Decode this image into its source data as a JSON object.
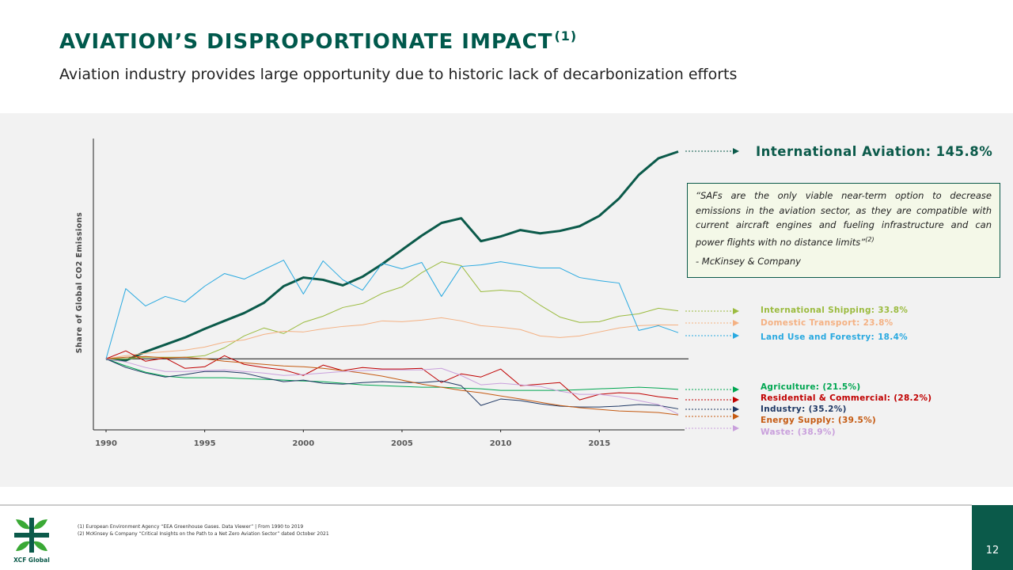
{
  "header": {
    "title": "AVIATION’S DISPROPORTIONATE IMPACT",
    "title_note": "(1)",
    "subtitle": "Aviation industry provides large opportunity due to historic lack of decarbonization efforts"
  },
  "chart_data": {
    "type": "line",
    "ylabel": "Share of Global CO2 Emissions",
    "x": [
      1990,
      1991,
      1992,
      1993,
      1994,
      1995,
      1996,
      1997,
      1998,
      1999,
      2000,
      2001,
      2002,
      2003,
      2004,
      2005,
      2006,
      2007,
      2008,
      2009,
      2010,
      2011,
      2012,
      2013,
      2014,
      2015,
      2016,
      2017,
      2018,
      2019
    ],
    "xlim": [
      1990,
      2019
    ],
    "xticks": [
      1990,
      1995,
      2000,
      2005,
      2010,
      2015
    ],
    "ylim": [
      -50,
      155
    ],
    "series": [
      {
        "name": "International Aviation:",
        "end_label": "145.8%",
        "color": "#0b5a4a",
        "line_width": 3,
        "values": [
          0,
          -1.1,
          5.0,
          10.0,
          15.0,
          21.1,
          26.7,
          32.2,
          39.4,
          51.1,
          57.2,
          55.6,
          51.7,
          57.8,
          66.7,
          76.7,
          86.7,
          95.6,
          98.9,
          82.8,
          86.1,
          90.6,
          88.3,
          90.0,
          93.3,
          100.6,
          112.8,
          129.4,
          141.1,
          145.8
        ]
      },
      {
        "name": "International Shipping:",
        "end_label": "33.8%",
        "color": "#9bbb3f",
        "line_width": 1,
        "values": [
          0,
          0,
          1.1,
          1.1,
          1.1,
          2.2,
          7.8,
          16.1,
          21.7,
          17.8,
          25.6,
          30.0,
          36.1,
          38.9,
          46.1,
          50.6,
          60.6,
          68.3,
          65.6,
          47.2,
          48.3,
          47.2,
          37.8,
          29.4,
          25.6,
          26.1,
          30.0,
          31.7,
          35.6,
          33.8
        ]
      },
      {
        "name": "Domestic Transport:",
        "end_label": "23.8%",
        "color": "#f4b183",
        "line_width": 1,
        "values": [
          0,
          2.2,
          3.9,
          5.0,
          6.1,
          8.3,
          11.7,
          13.3,
          17.2,
          19.4,
          18.9,
          21.1,
          22.8,
          23.9,
          26.7,
          26.1,
          27.2,
          28.9,
          26.7,
          23.3,
          22.2,
          20.6,
          16.1,
          15.0,
          16.1,
          18.9,
          21.7,
          23.3,
          23.9,
          23.8
        ]
      },
      {
        "name": "Land Use and Forestry:",
        "end_label": "18.4%",
        "color": "#29a9e0",
        "line_width": 1,
        "values": [
          0,
          49.4,
          37.2,
          43.9,
          40.0,
          51.1,
          60.0,
          56.1,
          62.8,
          69.4,
          45.6,
          68.9,
          55.6,
          48.3,
          67.2,
          63.3,
          67.8,
          43.9,
          65.0,
          66.1,
          68.3,
          66.1,
          63.9,
          63.9,
          57.2,
          55.0,
          53.3,
          20.0,
          23.3,
          18.4
        ]
      },
      {
        "name": "Agriculture:",
        "end_label": "(21.5%)",
        "color": "#00a651",
        "line_width": 1,
        "values": [
          0,
          -5.0,
          -9.4,
          -12.2,
          -13.3,
          -13.3,
          -13.3,
          -13.9,
          -14.4,
          -15.0,
          -15.6,
          -16.1,
          -17.2,
          -18.3,
          -18.9,
          -19.4,
          -20.0,
          -20.0,
          -20.6,
          -21.1,
          -22.2,
          -22.2,
          -22.2,
          -22.2,
          -21.7,
          -21.1,
          -20.6,
          -20.0,
          -20.6,
          -21.5
        ]
      },
      {
        "name": "Residential & Commercial:",
        "end_label": "(28.2%)",
        "color": "#c00000",
        "line_width": 1,
        "values": [
          0,
          5.6,
          -1.7,
          0.6,
          -6.7,
          -5.6,
          2.2,
          -3.9,
          -6.1,
          -7.8,
          -11.7,
          -4.4,
          -8.3,
          -6.1,
          -7.2,
          -7.2,
          -6.7,
          -16.7,
          -10.6,
          -12.8,
          -7.2,
          -18.9,
          -17.8,
          -16.7,
          -28.9,
          -25.0,
          -23.9,
          -24.4,
          -26.7,
          -28.2
        ]
      },
      {
        "name": "Industry:",
        "end_label": "(35.2%)",
        "color": "#1f3864",
        "line_width": 1,
        "values": [
          0,
          -6.1,
          -10.0,
          -12.8,
          -11.1,
          -8.9,
          -8.9,
          -10.0,
          -13.3,
          -16.1,
          -15.0,
          -17.2,
          -17.8,
          -16.7,
          -16.1,
          -16.7,
          -16.7,
          -15.6,
          -18.9,
          -32.8,
          -28.3,
          -29.4,
          -31.7,
          -33.3,
          -33.9,
          -33.9,
          -33.3,
          -32.2,
          -32.8,
          -35.2
        ]
      },
      {
        "name": "Energy Supply:",
        "end_label": "(39.5%)",
        "color": "#c55a11",
        "line_width": 1,
        "values": [
          0,
          1.1,
          1.7,
          0.6,
          1.1,
          0,
          -1.7,
          -2.8,
          -3.9,
          -5.0,
          -5.6,
          -6.7,
          -8.3,
          -10.0,
          -12.2,
          -15.0,
          -17.8,
          -20.0,
          -22.2,
          -23.9,
          -26.1,
          -28.3,
          -30.6,
          -32.8,
          -34.4,
          -35.6,
          -36.7,
          -37.2,
          -37.8,
          -39.5
        ]
      },
      {
        "name": "Waste:",
        "end_label": "(38.9%)",
        "color": "#c9a0dc",
        "line_width": 1,
        "values": [
          0,
          -2.2,
          -6.1,
          -8.9,
          -8.9,
          -8.3,
          -7.8,
          -8.9,
          -10.0,
          -11.7,
          -11.1,
          -10.0,
          -8.9,
          -8.3,
          -7.8,
          -7.8,
          -7.8,
          -6.7,
          -11.7,
          -18.3,
          -17.2,
          -18.3,
          -19.4,
          -22.8,
          -25.0,
          -25.0,
          -26.7,
          -29.4,
          -32.2,
          -38.9
        ]
      }
    ],
    "quote": {
      "text": "“SAFs are the only viable near-term option to decrease emissions in the aviation sector, as they are compatible with current aircraft engines and fueling infrastructure and can power flights with no distance limits”",
      "note": "(2)",
      "source": "- McKinsey & Company"
    }
  },
  "footnotes": [
    "(1) European Environment Agency “EEA Greenhouse Gases. Data Viewer” | From 1990 to 2019",
    "(2) McKinsey & Company “Critical Insights on the Path to a Net Zero Aviation Sector” dated October 2021"
  ],
  "logo": "XCF Global",
  "page_number": "12"
}
